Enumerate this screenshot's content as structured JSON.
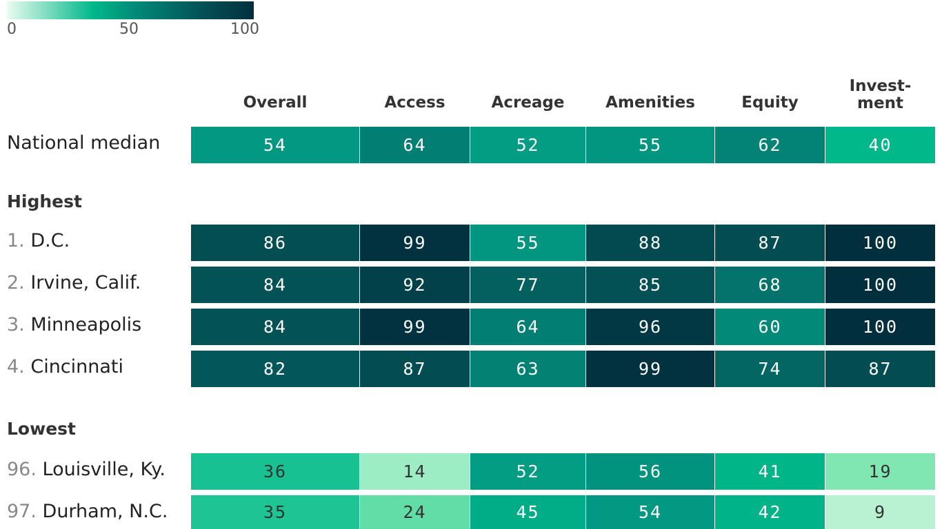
{
  "legend": {
    "ticks": [
      "0",
      "50",
      "100"
    ],
    "min": 0,
    "max": 100
  },
  "chart_data": {
    "type": "heatmap",
    "columns": [
      "Overall",
      "Access",
      "Acreage",
      "Amenities",
      "Equity",
      "Invest-\nment"
    ],
    "sections": [
      {
        "title": "",
        "rows": [
          {
            "rank": "",
            "name": "National median",
            "values": [
              54,
              64,
              52,
              55,
              62,
              40
            ]
          }
        ]
      },
      {
        "title": "Highest",
        "rows": [
          {
            "rank": "1.",
            "name": "D.C.",
            "values": [
              86,
              99,
              55,
              88,
              87,
              100
            ]
          },
          {
            "rank": "2.",
            "name": "Irvine, Calif.",
            "values": [
              84,
              92,
              77,
              85,
              68,
              100
            ]
          },
          {
            "rank": "3.",
            "name": "Minneapolis",
            "values": [
              84,
              99,
              64,
              96,
              60,
              100
            ]
          },
          {
            "rank": "4.",
            "name": "Cincinnati",
            "values": [
              82,
              87,
              63,
              99,
              74,
              87
            ]
          }
        ]
      },
      {
        "title": "Lowest",
        "rows": [
          {
            "rank": "96.",
            "name": "Louisville, Ky.",
            "values": [
              36,
              14,
              52,
              56,
              41,
              19
            ]
          },
          {
            "rank": "97.",
            "name": "Durham, N.C.",
            "values": [
              35,
              24,
              45,
              54,
              42,
              9
            ]
          }
        ]
      }
    ],
    "color_scale": {
      "min": 0,
      "max": 100
    }
  }
}
